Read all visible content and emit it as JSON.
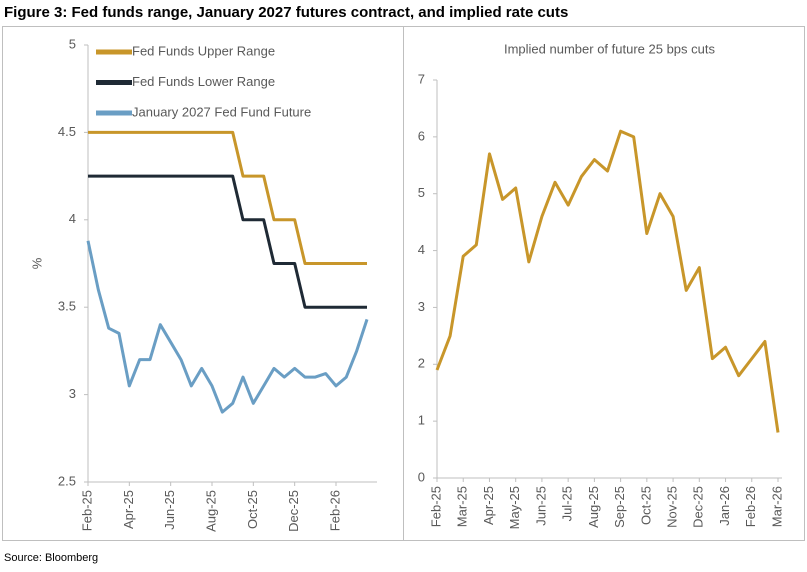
{
  "title": "Figure 3: Fed funds range, January 2027 futures contract, and implied rate cuts",
  "source": "Source: Bloomberg",
  "chart_data": [
    {
      "type": "line",
      "ylabel": "%",
      "legend": "upper left",
      "categories": [
        "Feb-25",
        null,
        null,
        null,
        "Apr-25",
        null,
        null,
        null,
        "Jun-25",
        null,
        null,
        null,
        "Aug-25",
        null,
        null,
        null,
        "Oct-25",
        null,
        null,
        null,
        "Dec-25",
        null,
        null,
        null,
        "Feb-26",
        null,
        null,
        null
      ],
      "ylim": [
        2.5,
        5
      ],
      "yticks": [
        2.5,
        3,
        3.5,
        4,
        4.5,
        5
      ],
      "series": [
        {
          "name": "Fed Funds Upper Range",
          "color": "#c8962a",
          "values": [
            4.5,
            4.5,
            4.5,
            4.5,
            4.5,
            4.5,
            4.5,
            4.5,
            4.5,
            4.5,
            4.5,
            4.5,
            4.5,
            4.5,
            4.5,
            4.25,
            4.25,
            4.25,
            4,
            4,
            4,
            3.75,
            3.75,
            3.75,
            3.75,
            3.75,
            3.75,
            3.75
          ]
        },
        {
          "name": "Fed Funds Lower Range",
          "color": "#1f2a35",
          "values": [
            4.25,
            4.25,
            4.25,
            4.25,
            4.25,
            4.25,
            4.25,
            4.25,
            4.25,
            4.25,
            4.25,
            4.25,
            4.25,
            4.25,
            4.25,
            4,
            4,
            4,
            3.75,
            3.75,
            3.75,
            3.5,
            3.5,
            3.5,
            3.5,
            3.5,
            3.5,
            3.5
          ]
        },
        {
          "name": "January 2027 Fed Fund Future",
          "color": "#6a9ec4",
          "values": [
            3.88,
            3.6,
            3.38,
            3.35,
            3.05,
            3.2,
            3.2,
            3.4,
            3.3,
            3.2,
            3.05,
            3.15,
            3.05,
            2.9,
            2.95,
            3.1,
            2.95,
            3.05,
            3.15,
            3.1,
            3.15,
            3.1,
            3.1,
            3.12,
            3.05,
            3.1,
            3.25,
            3.43
          ]
        }
      ]
    },
    {
      "type": "line",
      "title": "Implied number of future 25 bps cuts",
      "categories": [
        "Feb-25",
        null,
        "Mar-25",
        null,
        "Apr-25",
        null,
        "May-25",
        null,
        "Jun-25",
        null,
        "Jul-25",
        null,
        "Aug-25",
        null,
        "Sep-25",
        null,
        "Oct-25",
        null,
        "Nov-25",
        null,
        "Dec-25",
        null,
        "Jan-26",
        null,
        "Feb-26",
        null,
        "Mar-26"
      ],
      "ylim": [
        0,
        7
      ],
      "yticks": [
        0,
        1,
        2,
        3,
        4,
        5,
        6,
        7
      ],
      "color": "#c8962a",
      "values": [
        1.9,
        2.5,
        3.9,
        4.1,
        5.7,
        4.9,
        5.1,
        3.8,
        4.6,
        5.2,
        4.8,
        5.3,
        5.6,
        5.4,
        6.1,
        6.0,
        4.3,
        5.0,
        4.6,
        3.3,
        3.7,
        2.1,
        2.3,
        1.8,
        2.1,
        2.4,
        0.8
      ]
    }
  ]
}
